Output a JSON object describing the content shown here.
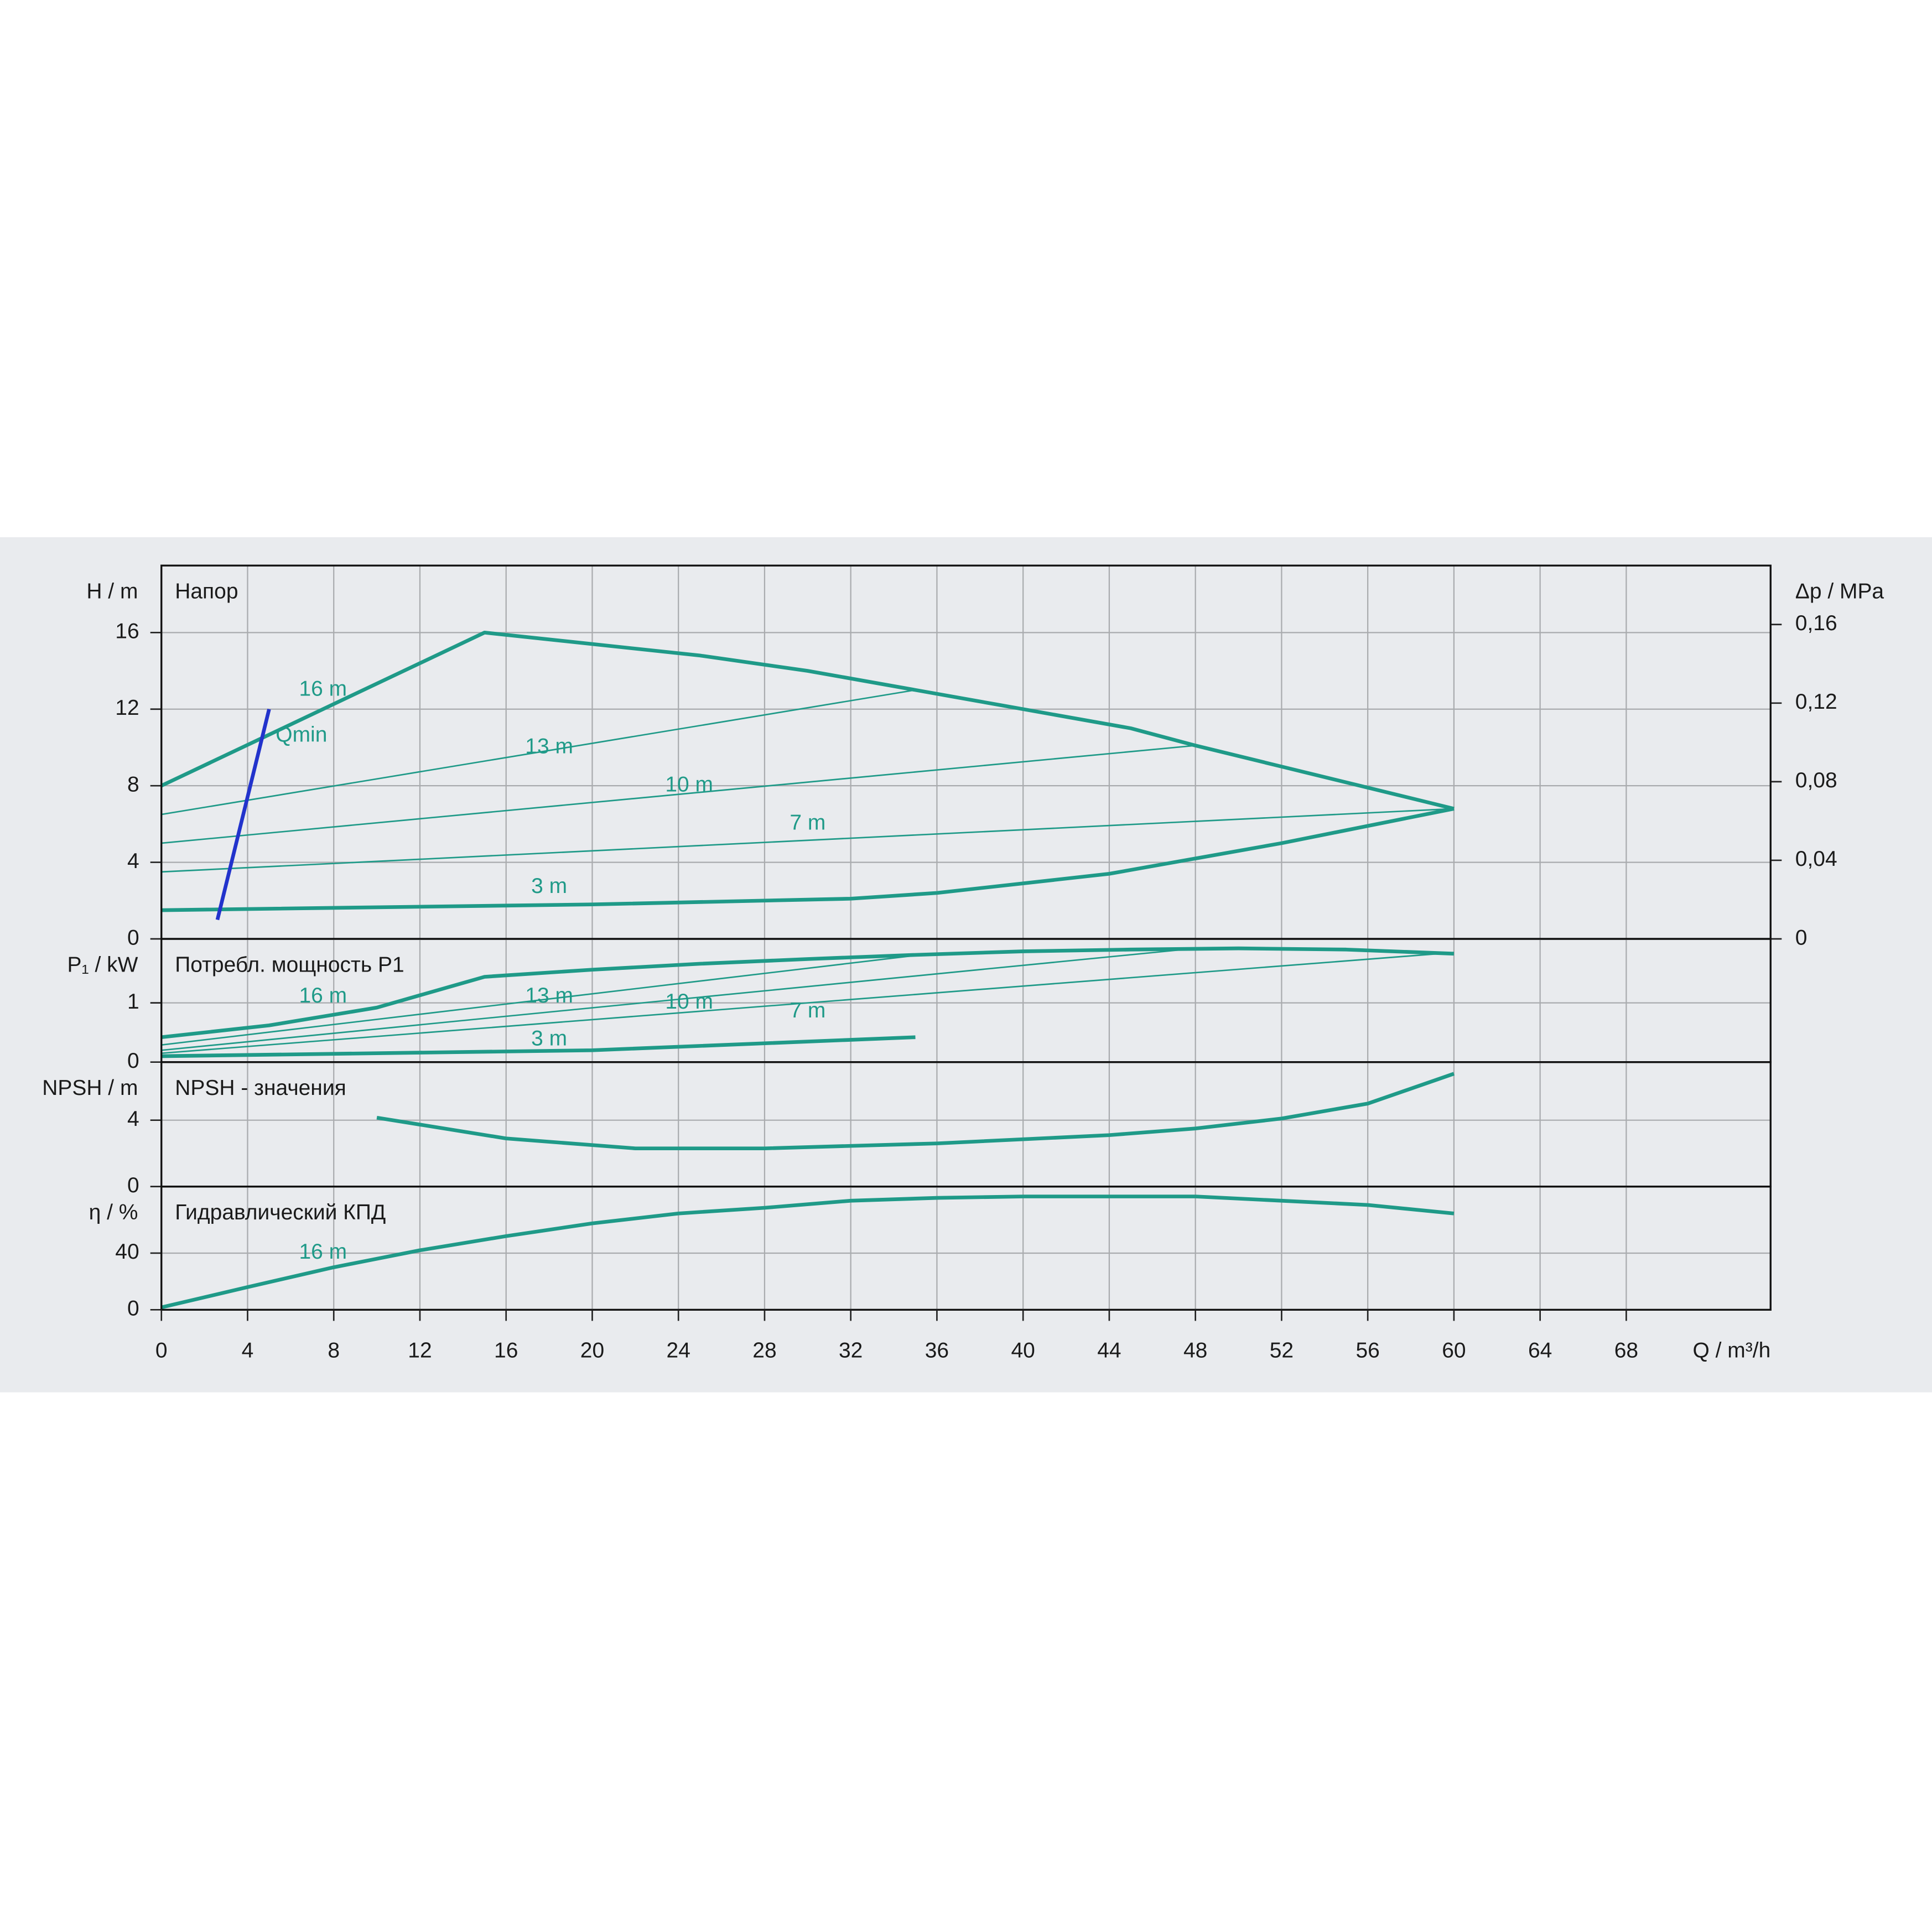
{
  "chart_data": [
    {
      "type": "line",
      "title": "Напор",
      "y_label": "H / m",
      "y2_label": "Δp / MPa",
      "xlim": [
        0,
        74.7
      ],
      "ylim": [
        0,
        19.5
      ],
      "yticks": [
        0,
        4,
        8,
        12,
        16
      ],
      "y2lim": [
        0,
        0.19
      ],
      "y2ticks": [
        {
          "value": 0,
          "label": "0"
        },
        {
          "value": 0.04,
          "label": "0,04"
        },
        {
          "value": 0.08,
          "label": "0,08"
        },
        {
          "value": 0.12,
          "label": "0,12"
        },
        {
          "value": 0.16,
          "label": "0,16"
        }
      ],
      "grid": true,
      "series": [
        {
          "name": "16 m",
          "color": "#1f9a88",
          "linewidth": 3,
          "x": [
            0,
            15,
            20,
            25,
            30,
            35,
            40,
            45,
            48,
            52,
            56,
            60
          ],
          "values": [
            8,
            16,
            15.4,
            14.8,
            14,
            13,
            12,
            11,
            10.1,
            9,
            7.9,
            6.8
          ]
        },
        {
          "name": "13 m",
          "color": "#1f9a88",
          "linewidth": 1.2,
          "x": [
            0,
            35
          ],
          "values": [
            6.5,
            13
          ]
        },
        {
          "name": "10 m",
          "color": "#1f9a88",
          "linewidth": 1.2,
          "x": [
            0,
            48
          ],
          "values": [
            5,
            10.1
          ]
        },
        {
          "name": "7 m",
          "color": "#1f9a88",
          "linewidth": 1.2,
          "x": [
            0,
            60
          ],
          "values": [
            3.5,
            6.8
          ]
        },
        {
          "name": "3 m",
          "color": "#1f9a88",
          "linewidth": 3,
          "x": [
            0,
            20,
            32,
            36,
            44,
            48,
            52,
            56,
            60
          ],
          "values": [
            1.5,
            1.8,
            2.1,
            2.4,
            3.4,
            4.2,
            5,
            5.9,
            6.8
          ]
        },
        {
          "name": "Qmin",
          "color": "#2233cc",
          "linewidth": 3,
          "x": [
            2.6,
            5
          ],
          "values": [
            1,
            12
          ]
        }
      ]
    },
    {
      "type": "line",
      "title": "Потребл. мощность P1",
      "y_label": "P₁ / kW",
      "xlim": [
        0,
        74.7
      ],
      "ylim": [
        0,
        2.08
      ],
      "yticks": [
        0,
        1
      ],
      "grid": true,
      "series": [
        {
          "name": "16 m",
          "color": "#1f9a88",
          "linewidth": 3,
          "x": [
            0,
            5,
            10,
            15,
            20,
            25,
            30,
            35,
            40,
            45,
            50,
            55,
            60
          ],
          "values": [
            0.42,
            0.62,
            0.92,
            1.44,
            1.56,
            1.66,
            1.74,
            1.81,
            1.87,
            1.9,
            1.92,
            1.9,
            1.83
          ]
        },
        {
          "name": "13 m",
          "color": "#1f9a88",
          "linewidth": 1.2,
          "x": [
            0,
            35
          ],
          "values": [
            0.29,
            1.8
          ]
        },
        {
          "name": "10 m",
          "color": "#1f9a88",
          "linewidth": 1.2,
          "x": [
            0,
            48
          ],
          "values": [
            0.2,
            1.92
          ]
        },
        {
          "name": "7 m",
          "color": "#1f9a88",
          "linewidth": 1.2,
          "x": [
            0,
            60
          ],
          "values": [
            0.15,
            1.85
          ]
        },
        {
          "name": "3 m",
          "color": "#1f9a88",
          "linewidth": 3,
          "x": [
            0,
            20,
            35
          ],
          "values": [
            0.1,
            0.2,
            0.42
          ]
        }
      ]
    },
    {
      "type": "line",
      "title": "NPSH - значения",
      "y_label": "NPSH / m",
      "xlim": [
        0,
        74.7
      ],
      "ylim": [
        0,
        7.5
      ],
      "yticks": [
        0,
        4
      ],
      "grid": true,
      "series": [
        {
          "color": "#1f9a88",
          "linewidth": 3,
          "x": [
            10,
            16,
            22,
            28,
            36,
            44,
            48,
            52,
            56,
            60
          ],
          "values": [
            4.15,
            2.9,
            2.3,
            2.3,
            2.6,
            3.1,
            3.5,
            4.1,
            5,
            6.8
          ]
        }
      ]
    },
    {
      "type": "line",
      "title": "Гидравлический КПД",
      "y_label": "η / %",
      "x_label": "Q / m³/h",
      "xlim": [
        0,
        74.7
      ],
      "ylim": [
        0,
        87
      ],
      "yticks": [
        0,
        40
      ],
      "xticks": [
        0,
        4,
        8,
        12,
        16,
        20,
        24,
        28,
        32,
        36,
        40,
        44,
        48,
        52,
        56,
        60,
        64,
        68
      ],
      "grid": true,
      "series": [
        {
          "name": "16 m",
          "color": "#1f9a88",
          "linewidth": 3,
          "x": [
            0,
            4,
            8,
            12,
            16,
            20,
            24,
            28,
            32,
            36,
            40,
            48,
            52,
            56,
            60
          ],
          "values": [
            1.7,
            16,
            30,
            42,
            52,
            61,
            68,
            72,
            77,
            79,
            80,
            80,
            77,
            74,
            68
          ]
        }
      ]
    }
  ]
}
